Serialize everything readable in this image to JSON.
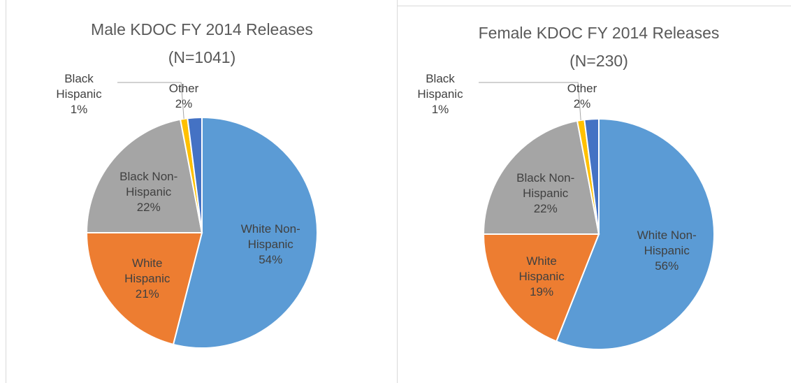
{
  "chart_data": [
    {
      "type": "pie",
      "title": "Male KDOC FY 2014 Releases",
      "subtitle": "(N=1041)",
      "categories": [
        "White Non-Hispanic",
        "White Hispanic",
        "Black Non-Hispanic",
        "Black Hispanic",
        "Other"
      ],
      "values": [
        54,
        21,
        22,
        1,
        2
      ],
      "value_labels": [
        "54%",
        "21%",
        "22%",
        "1%",
        "2%"
      ],
      "colors": [
        "#5b9bd5",
        "#ed7d31",
        "#a5a5a5",
        "#ffc000",
        "#4472c4"
      ]
    },
    {
      "type": "pie",
      "title": "Female KDOC FY 2014 Releases",
      "subtitle": "(N=230)",
      "categories": [
        "White Non-Hispanic",
        "White Hispanic",
        "Black Non-Hispanic",
        "Black Hispanic",
        "Other"
      ],
      "values": [
        56,
        19,
        22,
        1,
        2
      ],
      "value_labels": [
        "56%",
        "19%",
        "22%",
        "1%",
        "2%"
      ],
      "colors": [
        "#5b9bd5",
        "#ed7d31",
        "#a5a5a5",
        "#ffc000",
        "#4472c4"
      ]
    }
  ]
}
